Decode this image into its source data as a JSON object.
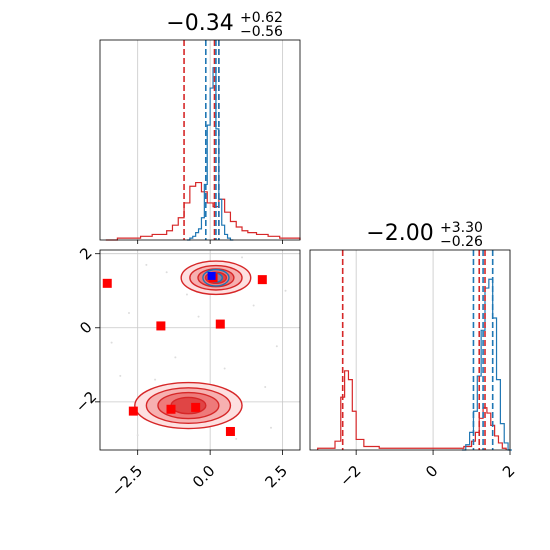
{
  "chart_data": {
    "type": "corner",
    "grid": true,
    "colors": {
      "series_a": "#1f77b4",
      "series_b": "#d62728",
      "marker": "#ff0000",
      "truth": "#0000ff"
    },
    "params": [
      {
        "title_value": "−0.34",
        "title_sup": "+0.62",
        "title_sub": "−0.56",
        "xlim": [
          -3.8,
          3.1
        ],
        "xticks": [
          {
            "value": -2.5,
            "label": "−2.5"
          },
          {
            "value": 0.0,
            "label": "0.0"
          },
          {
            "value": 2.5,
            "label": "2.5"
          }
        ],
        "grid_x": [
          -2.5,
          0,
          2.5
        ],
        "quantiles_a": [
          -0.15,
          0.2,
          0.3
        ],
        "quantiles_b": [
          -0.9,
          0.15,
          0.3
        ]
      },
      {
        "title_value": "−2.00",
        "title_sup": "+3.30",
        "title_sub": "−0.26",
        "xlim": [
          -3.2,
          2.0
        ],
        "xticks": [
          {
            "value": -2,
            "label": "−2"
          },
          {
            "value": 0,
            "label": "0"
          },
          {
            "value": 2,
            "label": "2"
          }
        ],
        "grid_x": [
          -2,
          0,
          2
        ],
        "quantiles_a": [
          1.05,
          1.3,
          1.55
        ],
        "quantiles_b": [
          -2.35,
          1.2,
          1.35
        ]
      }
    ],
    "marginal_a_x": [
      [
        -0.75,
        0
      ],
      [
        -0.65,
        0.01
      ],
      [
        -0.55,
        0.02
      ],
      [
        -0.45,
        0.04
      ],
      [
        -0.35,
        0.06
      ],
      [
        -0.25,
        0.12
      ],
      [
        -0.15,
        0.3
      ],
      [
        -0.05,
        0.62
      ],
      [
        0.05,
        0.82
      ],
      [
        0.15,
        0.93
      ],
      [
        0.25,
        0.6
      ],
      [
        0.35,
        0.22
      ],
      [
        0.45,
        0.08
      ],
      [
        0.55,
        0.03
      ],
      [
        0.65,
        0.01
      ],
      [
        0.75,
        0
      ]
    ],
    "marginal_b_x": [
      [
        -3.6,
        0
      ],
      [
        -3.2,
        0.01
      ],
      [
        -2.8,
        0.01
      ],
      [
        -2.4,
        0.02
      ],
      [
        -2.0,
        0.03
      ],
      [
        -1.7,
        0.03
      ],
      [
        -1.5,
        0.05
      ],
      [
        -1.3,
        0.08
      ],
      [
        -1.1,
        0.12
      ],
      [
        -0.9,
        0.2
      ],
      [
        -0.7,
        0.29
      ],
      [
        -0.5,
        0.31
      ],
      [
        -0.3,
        0.26
      ],
      [
        -0.1,
        0.2
      ],
      [
        0.1,
        0.18
      ],
      [
        0.3,
        0.22
      ],
      [
        0.5,
        0.15
      ],
      [
        0.7,
        0.1
      ],
      [
        0.9,
        0.07
      ],
      [
        1.1,
        0.05
      ],
      [
        1.3,
        0.04
      ],
      [
        1.6,
        0.03
      ],
      [
        2.0,
        0.02
      ],
      [
        2.4,
        0.01
      ],
      [
        2.8,
        0.01
      ],
      [
        3.1,
        0
      ]
    ],
    "marginal_a_y": [
      [
        0.8,
        0
      ],
      [
        0.9,
        0.03
      ],
      [
        1.0,
        0.1
      ],
      [
        1.1,
        0.22
      ],
      [
        1.2,
        0.42
      ],
      [
        1.3,
        0.68
      ],
      [
        1.4,
        0.92
      ],
      [
        1.5,
        0.97
      ],
      [
        1.6,
        0.75
      ],
      [
        1.7,
        0.4
      ],
      [
        1.8,
        0.15
      ],
      [
        1.9,
        0.04
      ],
      [
        2.0,
        0
      ]
    ],
    "marginal_b_y": [
      [
        -3.0,
        0.01
      ],
      [
        -2.7,
        0.01
      ],
      [
        -2.55,
        0.05
      ],
      [
        -2.4,
        0.3
      ],
      [
        -2.3,
        0.45
      ],
      [
        -2.2,
        0.4
      ],
      [
        -2.1,
        0.22
      ],
      [
        -2.0,
        0.06
      ],
      [
        -1.8,
        0.02
      ],
      [
        -1.4,
        0.01
      ],
      [
        -0.8,
        0.01
      ],
      [
        -0.2,
        0.01
      ],
      [
        0.4,
        0.01
      ],
      [
        0.8,
        0.02
      ],
      [
        1.0,
        0.05
      ],
      [
        1.1,
        0.1
      ],
      [
        1.2,
        0.18
      ],
      [
        1.3,
        0.24
      ],
      [
        1.4,
        0.21
      ],
      [
        1.5,
        0.14
      ],
      [
        1.6,
        0.08
      ],
      [
        1.7,
        0.04
      ],
      [
        1.8,
        0.01
      ],
      [
        1.9,
        0
      ]
    ],
    "joint": {
      "xlim": [
        -3.8,
        3.1
      ],
      "ylim": [
        -3.3,
        2.1
      ],
      "yticks": [
        {
          "value": 2,
          "label": "2"
        },
        {
          "value": 0,
          "label": "0"
        },
        {
          "value": -2,
          "label": "−2"
        }
      ],
      "grid_y": [
        -2,
        0,
        2
      ],
      "upper_mode": {
        "cx": 0.2,
        "cy": 1.35,
        "levels": [
          [
            1.2,
            0.45
          ],
          [
            0.9,
            0.33
          ],
          [
            0.62,
            0.24
          ],
          [
            0.36,
            0.15
          ]
        ],
        "blue_levels": [
          [
            0.45,
            0.22
          ],
          [
            0.22,
            0.12
          ]
        ]
      },
      "lower_mode": {
        "cx": -0.75,
        "cy": -2.1,
        "levels": [
          [
            1.85,
            0.62
          ],
          [
            1.45,
            0.48
          ],
          [
            1.05,
            0.35
          ],
          [
            0.6,
            0.22
          ]
        ]
      },
      "markers": [
        [
          -3.55,
          1.2
        ],
        [
          -1.7,
          0.05
        ],
        [
          0.35,
          0.1
        ],
        [
          1.8,
          1.3
        ],
        [
          -2.65,
          -2.25
        ],
        [
          -1.35,
          -2.2
        ],
        [
          -0.5,
          -2.15
        ],
        [
          0.7,
          -2.8
        ],
        [
          0.1,
          1.35
        ]
      ],
      "truth": [
        0.05,
        1.4
      ]
    }
  }
}
